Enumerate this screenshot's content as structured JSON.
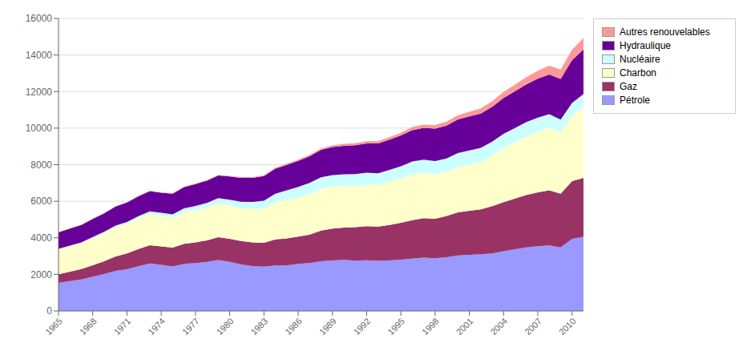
{
  "chart_data": {
    "type": "area",
    "stacked": true,
    "grid": true,
    "legend": "right",
    "x": [
      1965,
      1966,
      1967,
      1968,
      1969,
      1970,
      1971,
      1972,
      1973,
      1974,
      1975,
      1976,
      1977,
      1978,
      1979,
      1980,
      1981,
      1982,
      1983,
      1984,
      1985,
      1986,
      1987,
      1988,
      1989,
      1990,
      1991,
      1992,
      1993,
      1994,
      1995,
      1996,
      1997,
      1998,
      1999,
      2000,
      2001,
      2002,
      2003,
      2004,
      2005,
      2006,
      2007,
      2008,
      2009,
      2010,
      2011
    ],
    "xlim": [
      1965,
      2011
    ],
    "xticks": [
      1965,
      1968,
      1971,
      1974,
      1977,
      1980,
      1983,
      1986,
      1989,
      1992,
      1995,
      1998,
      2001,
      2004,
      2007,
      2010
    ],
    "ylim": [
      0,
      16000
    ],
    "yticks": [
      0,
      2000,
      4000,
      6000,
      8000,
      10000,
      12000,
      14000,
      16000
    ],
    "series": [
      {
        "name": "Pétrole",
        "color": "#9999FF",
        "values": [
          1530,
          1630,
          1720,
          1870,
          2020,
          2190,
          2280,
          2440,
          2600,
          2520,
          2430,
          2580,
          2620,
          2680,
          2780,
          2680,
          2540,
          2460,
          2420,
          2490,
          2490,
          2580,
          2620,
          2720,
          2760,
          2790,
          2750,
          2770,
          2740,
          2760,
          2810,
          2860,
          2920,
          2880,
          2940,
          3040,
          3070,
          3100,
          3150,
          3270,
          3380,
          3470,
          3540,
          3580,
          3470,
          3940,
          4060
        ]
      },
      {
        "name": "Gaz",
        "color": "#993366",
        "values": [
          480,
          520,
          570,
          630,
          700,
          790,
          870,
          950,
          1000,
          1010,
          1030,
          1090,
          1130,
          1180,
          1250,
          1260,
          1280,
          1290,
          1310,
          1420,
          1480,
          1490,
          1560,
          1680,
          1740,
          1770,
          1830,
          1870,
          1870,
          1940,
          2010,
          2100,
          2150,
          2160,
          2250,
          2350,
          2410,
          2460,
          2580,
          2680,
          2770,
          2870,
          2950,
          3017,
          2940,
          3157,
          3220
        ]
      },
      {
        "name": "Charbon",
        "color": "#FFFFCC",
        "values": [
          1370,
          1400,
          1420,
          1490,
          1540,
          1610,
          1620,
          1680,
          1710,
          1680,
          1640,
          1730,
          1760,
          1780,
          1850,
          1820,
          1800,
          1830,
          1870,
          2020,
          2090,
          2120,
          2210,
          2280,
          2280,
          2270,
          2250,
          2280,
          2280,
          2370,
          2420,
          2510,
          2490,
          2440,
          2420,
          2490,
          2520,
          2580,
          2760,
          2970,
          3080,
          3210,
          3330,
          3440,
          3360,
          3555,
          3870
        ]
      },
      {
        "name": "Nucléaire",
        "color": "#CCFFFF",
        "values": [
          17,
          27,
          40,
          55,
          70,
          83,
          100,
          115,
          140,
          165,
          185,
          210,
          235,
          265,
          295,
          320,
          355,
          385,
          430,
          480,
          540,
          590,
          610,
          630,
          645,
          645,
          655,
          645,
          640,
          645,
          670,
          700,
          715,
          715,
          730,
          755,
          780,
          780,
          770,
          770,
          780,
          780,
          760,
          720,
          700,
          720,
          720
        ]
      },
      {
        "name": "Hydraulique",
        "color": "#660099",
        "values": [
          900,
          930,
          950,
          990,
          1010,
          1040,
          1060,
          1080,
          1100,
          1090,
          1130,
          1160,
          1190,
          1220,
          1230,
          1270,
          1300,
          1310,
          1340,
          1370,
          1390,
          1430,
          1460,
          1500,
          1540,
          1560,
          1580,
          1600,
          1630,
          1650,
          1690,
          1720,
          1740,
          1780,
          1800,
          1840,
          1860,
          1880,
          1910,
          1960,
          2010,
          2070,
          2130,
          2180,
          2220,
          2350,
          2430
        ]
      },
      {
        "name": "Autres renouvelables",
        "color": "#FF9999",
        "values": [
          15,
          16,
          17,
          18,
          19,
          20,
          21,
          22,
          24,
          26,
          28,
          30,
          32,
          34,
          36,
          38,
          42,
          46,
          50,
          55,
          62,
          68,
          75,
          83,
          92,
          100,
          110,
          120,
          130,
          140,
          153,
          167,
          182,
          198,
          216,
          236,
          257,
          280,
          305,
          332,
          362,
          394,
          432,
          474,
          516,
          568,
          630
        ]
      }
    ]
  }
}
